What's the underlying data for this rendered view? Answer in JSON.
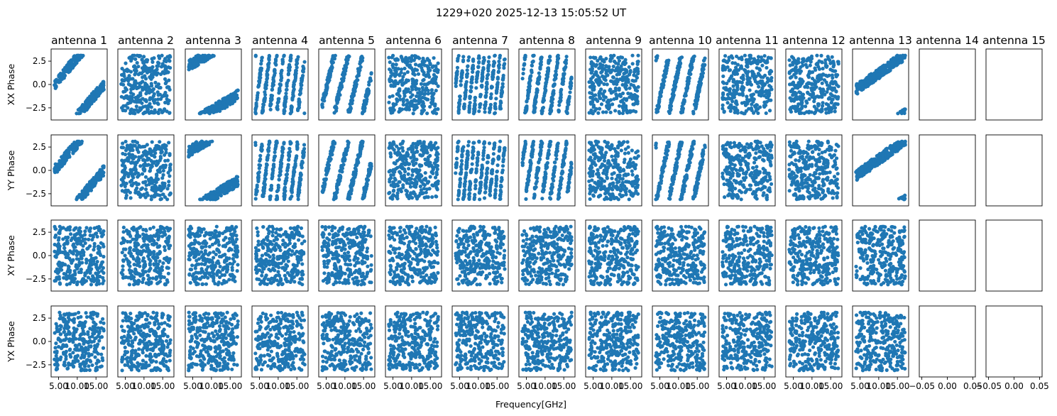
{
  "figure": {
    "title": "1229+020 2025-12-13 15:05:52 UT",
    "xlabel": "Frequency[GHz]"
  },
  "chart_data": {
    "type": "scatter",
    "title": "1229+020 2025-12-13 15:05:52 UT",
    "xlabel": "Frequency[GHz]",
    "columns": [
      "antenna 1",
      "antenna 2",
      "antenna 3",
      "antenna 4",
      "antenna 5",
      "antenna 6",
      "antenna 7",
      "antenna 8",
      "antenna 9",
      "antenna 10",
      "antenna 11",
      "antenna 12",
      "antenna 13",
      "antenna 14",
      "antenna 15"
    ],
    "rows": [
      "XX Phase",
      "YY Phase",
      "XY Phase",
      "YX Phase"
    ],
    "ylim": [
      -3.8,
      3.8
    ],
    "yticks": [
      2.5,
      0.0,
      -2.5
    ],
    "ytick_labels": [
      "2.5",
      "0.0",
      "−2.5"
    ],
    "xlim": [
      3.0,
      18.0
    ],
    "xticks": [
      5.0,
      10.0,
      15.0
    ],
    "xtick_labels": [
      "5.00",
      "10.00",
      "15.00"
    ],
    "empty_xlim": [
      -0.055,
      0.055
    ],
    "empty_xticks": [
      -0.05,
      0.0,
      0.05
    ],
    "empty_xtick_labels": [
      "−0.05",
      "0.00",
      "0.05"
    ],
    "data_columns": 13,
    "marker_color": "#1f77b4",
    "phase_wraps": [
      [
        1.0,
        0.0,
        0.5,
        7.0,
        3.5,
        0.0,
        9.5,
        6.0,
        0.0,
        4.0,
        0.0,
        0.0,
        0.6
      ],
      [
        1.0,
        0.0,
        0.5,
        7.0,
        3.5,
        0.0,
        9.5,
        6.0,
        0.0,
        4.0,
        0.0,
        0.0,
        0.6
      ],
      [
        0.0,
        0.0,
        0.0,
        0.0,
        0.0,
        0.0,
        0.0,
        0.0,
        0.0,
        0.0,
        0.0,
        0.0,
        0.0
      ],
      [
        0.0,
        0.0,
        0.0,
        0.0,
        0.0,
        0.0,
        0.0,
        0.0,
        0.0,
        0.0,
        0.0,
        0.0,
        0.0
      ]
    ],
    "points_per_panel": 300,
    "grid": false,
    "legend": "none"
  }
}
